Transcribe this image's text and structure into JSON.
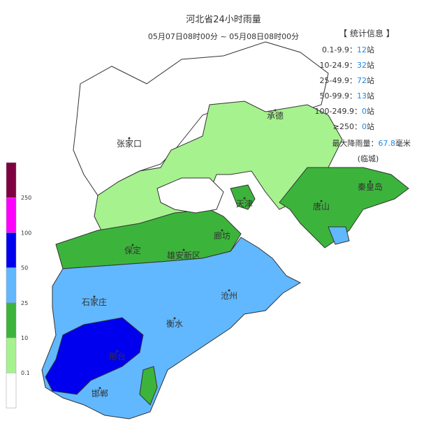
{
  "header": {
    "title": "河北省24小时雨量",
    "subtitle": "05月07日08时00分 ~ 05月08日08时00分"
  },
  "stats": {
    "heading": "【 统计信息 】",
    "rows": [
      {
        "range": "0.1-9.9：",
        "count": "12",
        "unit": "站"
      },
      {
        "range": "10-24.9：",
        "count": "32",
        "unit": "站"
      },
      {
        "range": "25-49.9：",
        "count": "72",
        "unit": "站"
      },
      {
        "range": "50-99.9：",
        "count": "13",
        "unit": "站"
      },
      {
        "range": "100-249.9：",
        "count": "0",
        "unit": "站"
      },
      {
        "range": "≥250：",
        "count": "0",
        "unit": "站"
      }
    ],
    "max": {
      "label": "最大降雨量：",
      "value": "67.8",
      "unit": "毫米",
      "station": "(临城)"
    }
  },
  "legend": {
    "thresholds": [
      250,
      100,
      50,
      25,
      10,
      0.1
    ],
    "colors": [
      "#7f0040",
      "#ff00ff",
      "#0000ee",
      "#61b8ff",
      "#3cb43c",
      "#a6f28f",
      "#ffffff"
    ]
  },
  "cities": [
    "张家口",
    "承德",
    "秦皇岛",
    "唐山",
    "天津",
    "保定",
    "廊坊",
    "雄安新区",
    "石家庄",
    "沧州",
    "衡水",
    "邢台",
    "邯郸"
  ]
}
